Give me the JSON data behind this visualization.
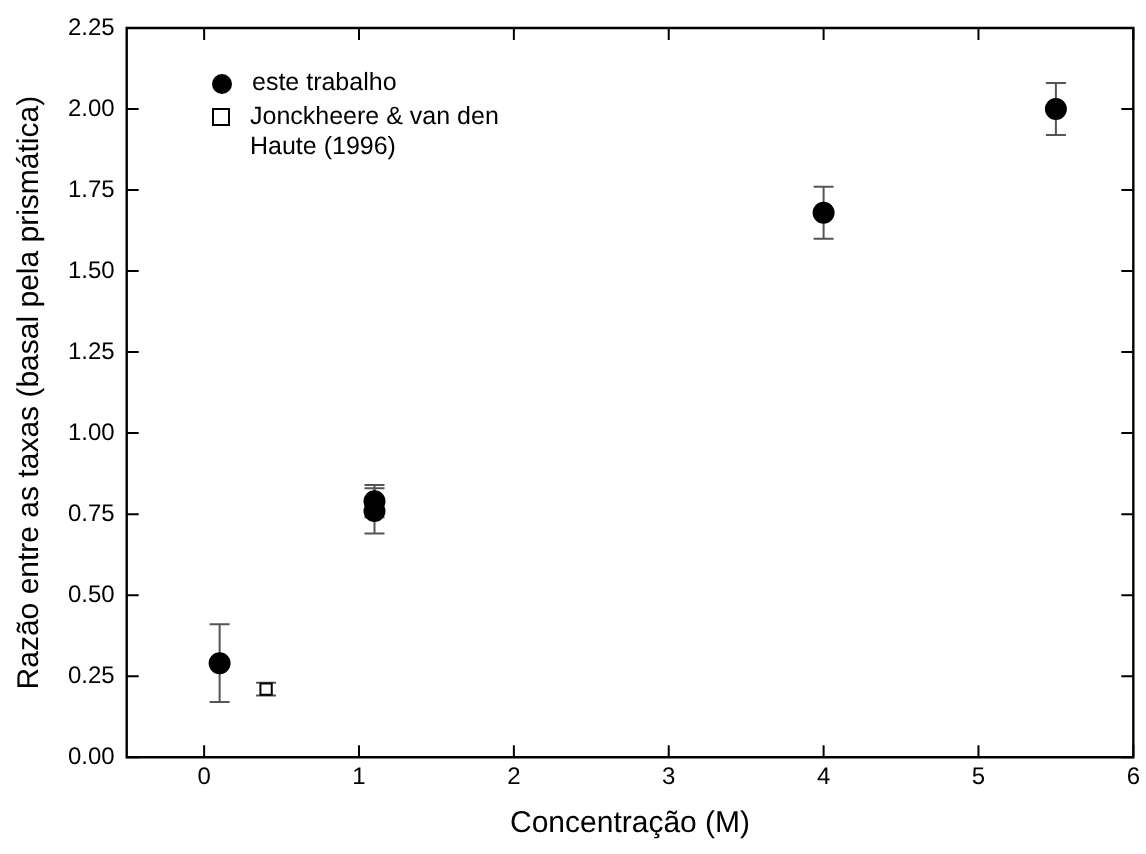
{
  "chart_data": {
    "type": "scatter",
    "xlabel": "Concentração (M)",
    "ylabel": "Razão entre as taxas (basal pela prismática)",
    "series": [
      {
        "name": "este trabalho",
        "color": "#000000",
        "marker": "circle",
        "x": [
          0.1,
          1.1,
          1.1,
          4,
          5.5
        ],
        "values": [
          0.29,
          0.79,
          0.76,
          1.68,
          2.0
        ],
        "errors": [
          0.12,
          0.05,
          0.07,
          0.08,
          0.08
        ]
      },
      {
        "name": "Jonckheere & van den Haute (1996)",
        "color": "#000000",
        "marker": "square",
        "x": [
          0.4
        ],
        "values": [
          0.21
        ],
        "errors": [
          0.02
        ]
      }
    ],
    "xlim": [
      -0.5,
      6
    ],
    "xticks": [
      0,
      1,
      2,
      3,
      4,
      5,
      6
    ],
    "ylim": [
      0,
      2.25
    ],
    "yticks": [
      {
        "value": 0,
        "label": "0.00"
      },
      {
        "value": 0.25,
        "label": "0.25"
      },
      {
        "value": 0.5,
        "label": "0.50"
      },
      {
        "value": 0.75,
        "label": "0.75"
      },
      {
        "value": 1,
        "label": "1.00"
      },
      {
        "value": 1.25,
        "label": "1.25"
      },
      {
        "value": 1.5,
        "label": "1.50"
      },
      {
        "value": 1.75,
        "label": "1.75"
      },
      {
        "value": 2,
        "label": "2.00"
      },
      {
        "value": 2.25,
        "label": "2.25"
      }
    ],
    "grid": false,
    "legend": "top left"
  }
}
